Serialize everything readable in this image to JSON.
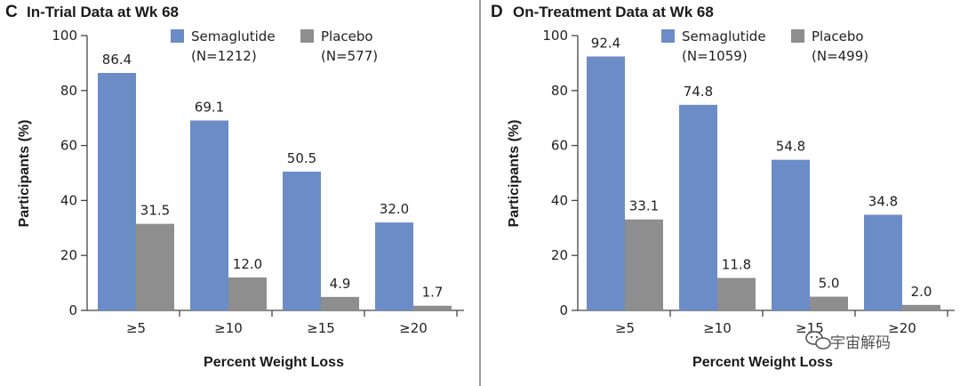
{
  "colors": {
    "semaglutide": "#6b8cc7",
    "placebo": "#8e8e8e",
    "axis": "#444444"
  },
  "watermark": {
    "text": "宇宙解码",
    "icon": "wechat-icon"
  },
  "chart_data": [
    {
      "type": "bar",
      "panel": "C",
      "title": "In-Trial Data at Wk 68",
      "xlabel": "Percent Weight Loss",
      "ylabel": "Participants (%)",
      "ylim": [
        0,
        100
      ],
      "yticks": [
        "0",
        "20",
        "40",
        "60",
        "80",
        "100"
      ],
      "categories": [
        "≥5",
        "≥10",
        "≥15",
        "≥20"
      ],
      "series": [
        {
          "name": "Semaglutide",
          "n_label": "(N=1212)",
          "values": [
            86.4,
            69.1,
            50.5,
            32.0
          ],
          "labels": [
            "86.4",
            "69.1",
            "50.5",
            "32.0"
          ]
        },
        {
          "name": "Placebo",
          "n_label": "(N=577)",
          "values": [
            31.5,
            12.0,
            4.9,
            1.7
          ],
          "labels": [
            "31.5",
            "12.0",
            "4.9",
            "1.7"
          ]
        }
      ]
    },
    {
      "type": "bar",
      "panel": "D",
      "title": "On-Treatment Data at Wk 68",
      "xlabel": "Percent Weight Loss",
      "ylabel": "Participants (%)",
      "ylim": [
        0,
        100
      ],
      "yticks": [
        "0",
        "20",
        "40",
        "60",
        "80",
        "100"
      ],
      "categories": [
        "≥5",
        "≥10",
        "≥15",
        "≥20"
      ],
      "series": [
        {
          "name": "Semaglutide",
          "n_label": "(N=1059)",
          "values": [
            92.4,
            74.8,
            54.8,
            34.8
          ],
          "labels": [
            "92.4",
            "74.8",
            "54.8",
            "34.8"
          ]
        },
        {
          "name": "Placebo",
          "n_label": "(N=499)",
          "values": [
            33.1,
            11.8,
            5.0,
            2.0
          ],
          "labels": [
            "33.1",
            "11.8",
            "5.0",
            "2.0"
          ]
        }
      ]
    }
  ]
}
